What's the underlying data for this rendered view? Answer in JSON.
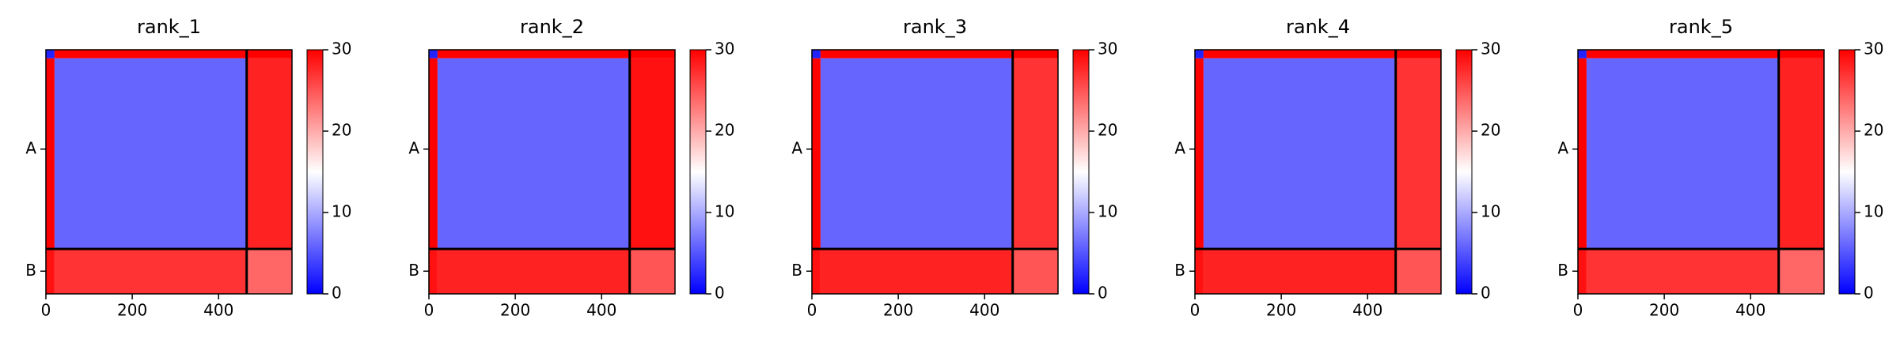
{
  "chart_data": [
    {
      "type": "heatmap",
      "title": "rank_1",
      "edges": [
        0,
        20,
        465,
        570
      ],
      "values": [
        [
          2,
          30,
          30
        ],
        [
          30,
          6,
          28
        ],
        [
          29,
          27,
          24
        ]
      ],
      "chain_breaks": [
        465
      ],
      "xlim": [
        0,
        570
      ],
      "ylim": [
        570,
        0
      ],
      "xticks": [
        0,
        200,
        400
      ],
      "yticks": [
        {
          "value": 232,
          "label": "A"
        },
        {
          "value": 517,
          "label": "B"
        }
      ],
      "clim": [
        0,
        30
      ],
      "cticks": [
        0,
        10,
        20,
        30
      ],
      "cmap": [
        "#0000ff",
        "#ffffff",
        "#ff0000"
      ]
    },
    {
      "type": "heatmap",
      "title": "rank_2",
      "edges": [
        0,
        20,
        465,
        570
      ],
      "values": [
        [
          2,
          30,
          30
        ],
        [
          30,
          6,
          29
        ],
        [
          29,
          28,
          25
        ]
      ],
      "chain_breaks": [
        465
      ],
      "xlim": [
        0,
        570
      ],
      "ylim": [
        570,
        0
      ],
      "xticks": [
        0,
        200,
        400
      ],
      "yticks": [
        {
          "value": 232,
          "label": "A"
        },
        {
          "value": 517,
          "label": "B"
        }
      ],
      "clim": [
        0,
        30
      ],
      "cticks": [
        0,
        10,
        20,
        30
      ],
      "cmap": [
        "#0000ff",
        "#ffffff",
        "#ff0000"
      ]
    },
    {
      "type": "heatmap",
      "title": "rank_3",
      "edges": [
        0,
        20,
        465,
        570
      ],
      "values": [
        [
          2,
          30,
          30
        ],
        [
          30,
          6,
          27
        ],
        [
          29,
          28,
          25
        ]
      ],
      "chain_breaks": [
        465
      ],
      "xlim": [
        0,
        570
      ],
      "ylim": [
        570,
        0
      ],
      "xticks": [
        0,
        200,
        400
      ],
      "yticks": [
        {
          "value": 232,
          "label": "A"
        },
        {
          "value": 517,
          "label": "B"
        }
      ],
      "clim": [
        0,
        30
      ],
      "cticks": [
        0,
        10,
        20,
        30
      ],
      "cmap": [
        "#0000ff",
        "#ffffff",
        "#ff0000"
      ]
    },
    {
      "type": "heatmap",
      "title": "rank_4",
      "edges": [
        0,
        20,
        465,
        570
      ],
      "values": [
        [
          2,
          30,
          30
        ],
        [
          30,
          6,
          27
        ],
        [
          29,
          28,
          25
        ]
      ],
      "chain_breaks": [
        465
      ],
      "xlim": [
        0,
        570
      ],
      "ylim": [
        570,
        0
      ],
      "xticks": [
        0,
        200,
        400
      ],
      "yticks": [
        {
          "value": 232,
          "label": "A"
        },
        {
          "value": 517,
          "label": "B"
        }
      ],
      "clim": [
        0,
        30
      ],
      "cticks": [
        0,
        10,
        20,
        30
      ],
      "cmap": [
        "#0000ff",
        "#ffffff",
        "#ff0000"
      ]
    },
    {
      "type": "heatmap",
      "title": "rank_5",
      "edges": [
        0,
        20,
        465,
        570
      ],
      "values": [
        [
          2,
          30,
          30
        ],
        [
          30,
          6,
          28
        ],
        [
          29,
          27,
          24
        ]
      ],
      "chain_breaks": [
        465
      ],
      "xlim": [
        0,
        570
      ],
      "ylim": [
        570,
        0
      ],
      "xticks": [
        0,
        200,
        400
      ],
      "yticks": [
        {
          "value": 232,
          "label": "A"
        },
        {
          "value": 517,
          "label": "B"
        }
      ],
      "clim": [
        0,
        30
      ],
      "cticks": [
        0,
        10,
        20,
        30
      ],
      "cmap": [
        "#0000ff",
        "#ffffff",
        "#ff0000"
      ]
    }
  ]
}
